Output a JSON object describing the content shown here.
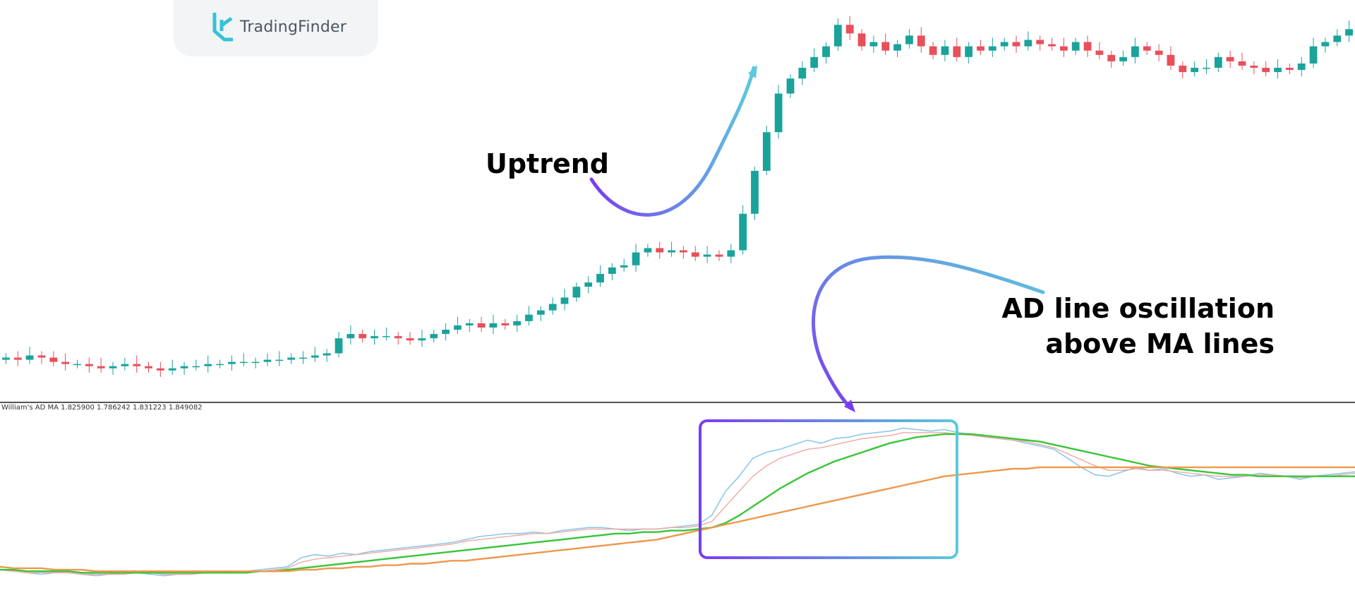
{
  "brand": {
    "name": "TradingFinder",
    "logo_icon": "tradingfinder-logo-icon"
  },
  "indicator_label": "William's AD MA 1.825900 1.786242 1.831223 1.849082",
  "annotations": {
    "uptrend": "Uptrend",
    "ad_line_1": "AD line oscillation",
    "ad_line_2": "above MA lines"
  },
  "colors": {
    "bull": "#1aa39a",
    "bear": "#e84f5a",
    "ad_line": "#8ec7ea",
    "ma_fast": "#f0a9a3",
    "ma_mid": "#39c539",
    "ma_slow": "#f0974c",
    "arrow_start": "#7a3cf0",
    "arrow_end": "#5cc9dc",
    "highlight_box_start": "#7a3cf0",
    "highlight_box_end": "#5cc9dc"
  },
  "chart_data": {
    "type": "line",
    "title": "",
    "panels": [
      {
        "name": "price",
        "series_type": "candlestick",
        "close": [
          5,
          4,
          6,
          5,
          3,
          2,
          2,
          1,
          0,
          1,
          2,
          1,
          0,
          -1,
          0,
          1,
          1,
          2,
          2,
          3,
          3,
          3,
          4,
          4,
          5,
          5,
          6,
          7,
          14,
          16,
          14,
          15,
          15,
          14,
          13,
          14,
          16,
          18,
          20,
          21,
          19,
          21,
          20,
          22,
          25,
          27,
          30,
          33,
          38,
          40,
          44,
          47,
          48,
          54,
          56,
          54,
          55,
          54,
          52,
          53,
          52,
          55,
          72,
          92,
          110,
          128,
          135,
          140,
          145,
          150,
          160,
          156,
          150,
          152,
          148,
          151,
          155,
          150,
          146,
          150,
          145,
          150,
          148,
          150,
          152,
          150,
          153,
          151,
          150,
          148,
          152,
          148,
          146,
          143,
          145,
          150,
          148,
          146,
          141,
          138,
          140,
          140,
          145,
          143,
          141,
          140,
          138,
          140,
          139,
          142,
          150,
          152,
          155,
          158
        ]
      },
      {
        "name": "indicator",
        "series": [
          {
            "name": "AD",
            "values": [
              0,
              -1,
              -2,
              -3,
              -2,
              -2,
              -3,
              -4,
              -3,
              -2,
              -2,
              -3,
              -4,
              -3,
              -3,
              -2,
              -2,
              -1,
              -1,
              0,
              1,
              2,
              8,
              10,
              9,
              11,
              10,
              12,
              13,
              14,
              15,
              16,
              17,
              18,
              20,
              22,
              23,
              24,
              24,
              25,
              24,
              26,
              27,
              28,
              28,
              27,
              26,
              27,
              27,
              28,
              29,
              30,
              36,
              52,
              62,
              74,
              78,
              80,
              83,
              86,
              84,
              87,
              88,
              90,
              91,
              92,
              94,
              93,
              92,
              93,
              91,
              90,
              88,
              87,
              86,
              84,
              82,
              80,
              74,
              68,
              63,
              62,
              65,
              68,
              66,
              67,
              64,
              62,
              63,
              60,
              61,
              62,
              64,
              63,
              62,
              60,
              62,
              63,
              64,
              65
            ]
          },
          {
            "name": "MA1",
            "values": [
              0,
              -1,
              -2,
              -2,
              -2,
              -2,
              -3,
              -3,
              -3,
              -3,
              -2,
              -2,
              -3,
              -3,
              -3,
              -2,
              -2,
              -2,
              -1,
              -1,
              0,
              1,
              5,
              7,
              8,
              9,
              10,
              11,
              12,
              13,
              14,
              15,
              16,
              17,
              19,
              20,
              21,
              22,
              23,
              24,
              24,
              25,
              26,
              27,
              27,
              27,
              27,
              27,
              27,
              28,
              28,
              29,
              32,
              42,
              52,
              62,
              69,
              74,
              77,
              80,
              81,
              83,
              85,
              87,
              88,
              89,
              91,
              91,
              91,
              91,
              90,
              89,
              88,
              87,
              86,
              85,
              83,
              81,
              77,
              73,
              69,
              66,
              66,
              67,
              66,
              66,
              65,
              64,
              63,
              62,
              62,
              62,
              63,
              63,
              62,
              61,
              62,
              62,
              63,
              64
            ]
          },
          {
            "name": "MA2",
            "values": [
              0,
              0,
              -1,
              -1,
              -1,
              -1,
              -2,
              -2,
              -2,
              -2,
              -2,
              -2,
              -2,
              -2,
              -2,
              -2,
              -2,
              -2,
              -2,
              -1,
              -1,
              0,
              1,
              2,
              3,
              4,
              5,
              6,
              7,
              8,
              9,
              10,
              11,
              12,
              13,
              14,
              15,
              16,
              17,
              18,
              19,
              20,
              21,
              22,
              23,
              24,
              24,
              25,
              25,
              26,
              26,
              27,
              28,
              31,
              36,
              42,
              48,
              54,
              59,
              64,
              68,
              72,
              75,
              78,
              81,
              84,
              86,
              88,
              89,
              90,
              90,
              90,
              89,
              88,
              87,
              86,
              85,
              83,
              81,
              79,
              77,
              75,
              73,
              71,
              69,
              68,
              67,
              66,
              65,
              64,
              63,
              63,
              62,
              62,
              62,
              62,
              62,
              62,
              62,
              62
            ]
          },
          {
            "name": "MA3",
            "values": [
              2,
              1,
              1,
              1,
              0,
              0,
              0,
              -1,
              -1,
              -1,
              -1,
              -1,
              -1,
              -1,
              -1,
              -1,
              -1,
              -1,
              -1,
              -1,
              -1,
              -1,
              0,
              0,
              1,
              1,
              2,
              2,
              3,
              3,
              4,
              4,
              5,
              6,
              6,
              7,
              8,
              9,
              10,
              11,
              12,
              13,
              14,
              15,
              16,
              17,
              18,
              19,
              20,
              22,
              24,
              26,
              28,
              30,
              32,
              34,
              36,
              38,
              40,
              42,
              44,
              46,
              48,
              50,
              52,
              54,
              56,
              58,
              60,
              62,
              63,
              64,
              65,
              66,
              67,
              67,
              68,
              68,
              68,
              68,
              68,
              68,
              68,
              68,
              68,
              68,
              68,
              68,
              68,
              68,
              68,
              68,
              68,
              68,
              68,
              68,
              68,
              68,
              68,
              68
            ]
          }
        ]
      }
    ]
  }
}
